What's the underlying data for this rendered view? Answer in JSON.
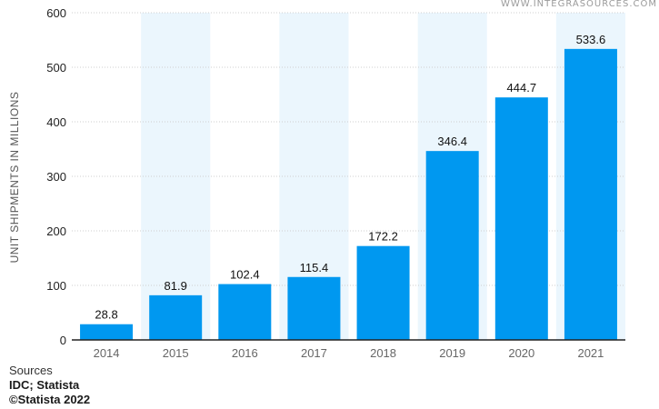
{
  "watermark": "WWW.INTEGRASOURCES.COM",
  "footer": {
    "sources_label": "Sources",
    "sources_value": "IDC; Statista",
    "copyright": "©Statista 2022"
  },
  "colors": {
    "bar": "#0098f0",
    "band": "#ebf6fd",
    "grid": "#cfcfcf",
    "axis": "#222222"
  },
  "chart_data": {
    "type": "bar",
    "title": "",
    "xlabel": "",
    "ylabel": "UNIT SHIPMENTS IN MILLIONS",
    "categories": [
      "2014",
      "2015",
      "2016",
      "2017",
      "2018",
      "2019",
      "2020",
      "2021"
    ],
    "values": [
      28.8,
      81.9,
      102.4,
      115.4,
      172.2,
      346.4,
      444.7,
      533.6
    ],
    "value_labels": [
      "28.8",
      "81.9",
      "102.4",
      "115.4",
      "172.2",
      "346.4",
      "444.7",
      "533.6"
    ],
    "ylim": [
      0,
      600
    ],
    "yticks": [
      0,
      100,
      200,
      300,
      400,
      500,
      600
    ],
    "grid": true,
    "legend": "none"
  }
}
